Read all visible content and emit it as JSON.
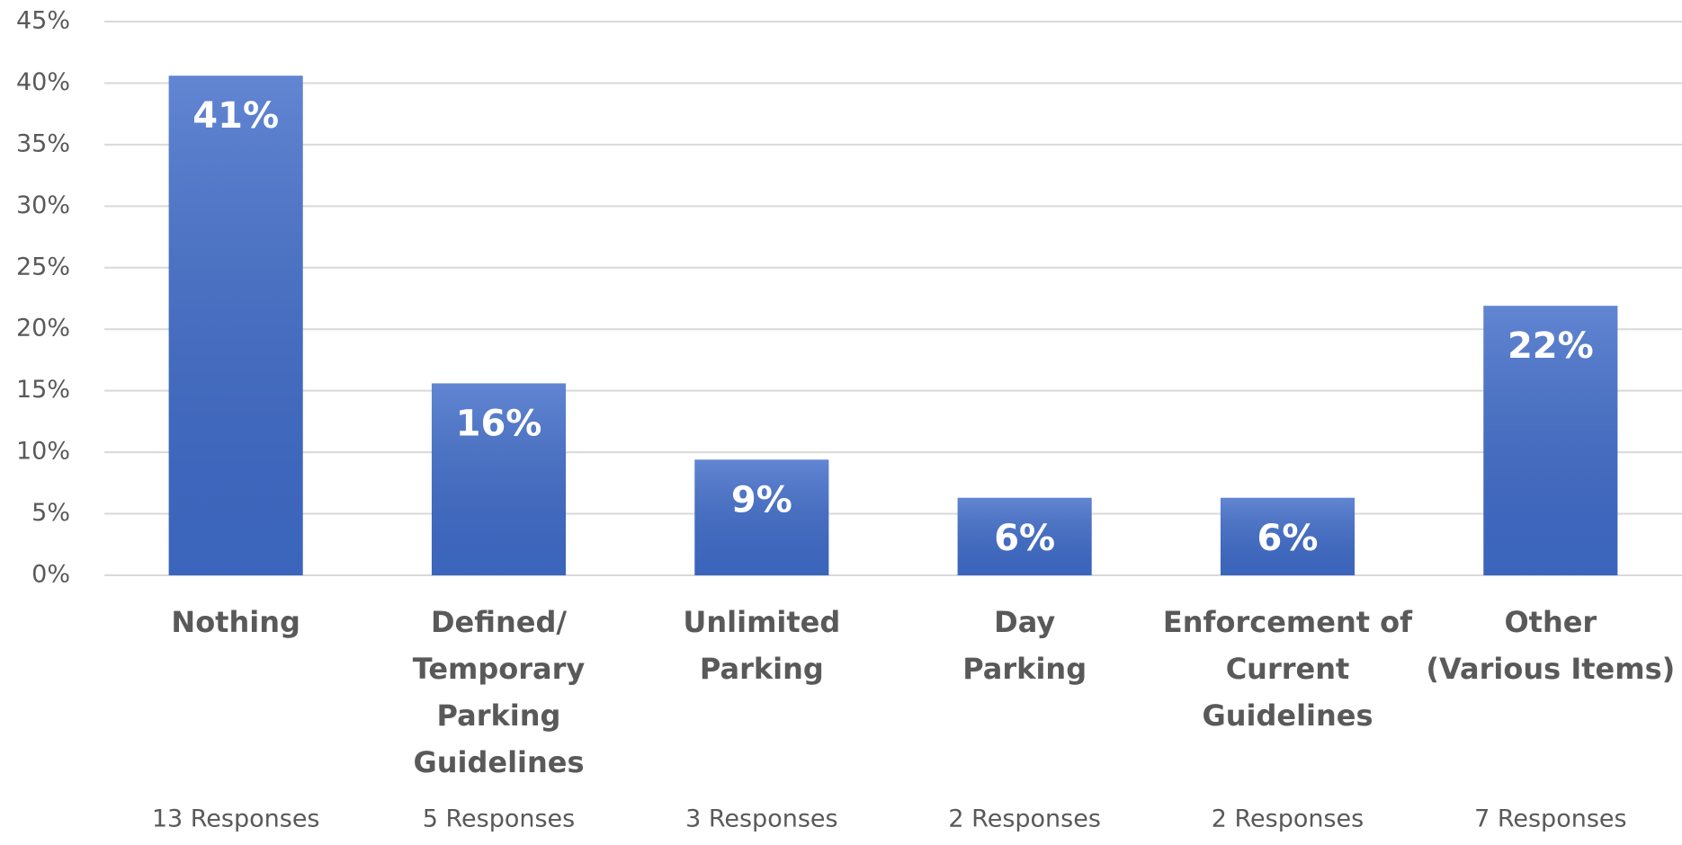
{
  "chart_data": {
    "type": "bar",
    "categories": [
      "Nothing",
      "Defined/\nTemporary\nParking\nGuidelines",
      "Unlimited\nParking",
      "Day\nParking",
      "Enforcement of\nCurrent\nGuidelines",
      "Other\n(Various Items)"
    ],
    "responses": [
      "13 Responses",
      "5 Responses",
      "3 Responses",
      "2 Responses",
      "2 Responses",
      "7 Responses"
    ],
    "values": [
      40.6,
      15.6,
      9.4,
      6.3,
      6.3,
      21.9
    ],
    "value_labels": [
      "41%",
      "16%",
      "9%",
      "6%",
      "6%",
      "22%"
    ],
    "color": "#3f6bc8",
    "ylim": [
      0,
      45
    ],
    "yticks": [
      {
        "value": 0,
        "label": "0%"
      },
      {
        "value": 5,
        "label": "5%"
      },
      {
        "value": 10,
        "label": "10%"
      },
      {
        "value": 15,
        "label": "15%"
      },
      {
        "value": 20,
        "label": "20%"
      },
      {
        "value": 25,
        "label": "25%"
      },
      {
        "value": 30,
        "label": "30%"
      },
      {
        "value": 35,
        "label": "35%"
      },
      {
        "value": 40,
        "label": "40%"
      },
      {
        "value": 45,
        "label": "45%"
      }
    ],
    "grid": true
  }
}
